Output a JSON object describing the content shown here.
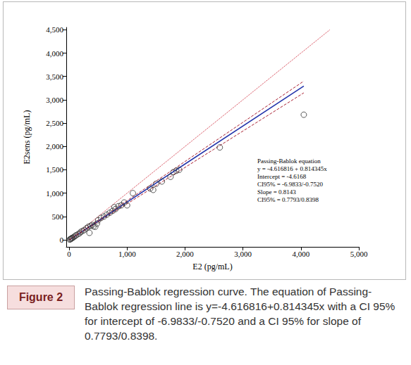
{
  "chart_data": {
    "type": "scatter",
    "x_label": "E2 (pg/mL)",
    "y_label": "E2sens (pg/mL)",
    "xlim": [
      -50,
      5000
    ],
    "ylim": [
      -150,
      4550
    ],
    "xticks": [
      0,
      1000,
      2000,
      3000,
      4000,
      5000
    ],
    "yticks": [
      0,
      500,
      1000,
      1500,
      2000,
      2500,
      3000,
      3500,
      4000,
      4500
    ],
    "grid": false,
    "annotations": [
      "Passing-Bablok equation",
      "y = -4.616816 + 0.814345x",
      "Intercept = -4.6168",
      "CI95% = -6.9833/-0.7520",
      "Slope = 0.8143",
      "CI95% = 0.7793/0.8398"
    ],
    "figure_label": "Figure 2",
    "caption": "Passing-Bablok regression curve. The equation of Passing-Bablok regression line is y=-4.616816+0.814345x with a CI 95% for intercept of -6.9833/-0.7520 and a CI 95% for slope of 0.7793/0.8398.",
    "series": [
      {
        "type": "scatter",
        "marker": "circle-open",
        "color": "#333333",
        "x": [
          10,
          20,
          30,
          40,
          50,
          60,
          80,
          100,
          120,
          150,
          180,
          200,
          230,
          260,
          300,
          330,
          350,
          370,
          400,
          420,
          450,
          480,
          500,
          550,
          600,
          650,
          700,
          750,
          780,
          800,
          850,
          900,
          950,
          1000,
          1100,
          1400,
          1450,
          1500,
          1600,
          1750,
          1800,
          1850,
          1900,
          2600,
          4050
        ],
        "values": [
          5,
          15,
          20,
          30,
          40,
          45,
          60,
          80,
          100,
          120,
          140,
          170,
          190,
          210,
          250,
          280,
          150,
          300,
          320,
          290,
          280,
          350,
          420,
          470,
          500,
          540,
          580,
          620,
          700,
          660,
          720,
          740,
          800,
          740,
          1000,
          1100,
          1070,
          1200,
          1250,
          1350,
          1450,
          1480,
          1500,
          1980,
          2680
        ]
      },
      {
        "type": "line",
        "line_style": "solid",
        "color": "#2233aa",
        "x": [
          0,
          4050
        ],
        "values": [
          -4.6,
          3293.5
        ]
      },
      {
        "type": "line",
        "line_style": "dashed",
        "color": "#aa2233",
        "x": [
          0,
          4050
        ],
        "values": [
          -0.8,
          3400
        ]
      },
      {
        "type": "line",
        "line_style": "dashed",
        "color": "#aa2233",
        "x": [
          0,
          4050
        ],
        "values": [
          -7.0,
          3149
        ]
      },
      {
        "type": "line",
        "line_style": "dotted",
        "color": "#cc2233",
        "x": [
          0,
          4500
        ],
        "values": [
          0,
          4500
        ]
      }
    ]
  }
}
